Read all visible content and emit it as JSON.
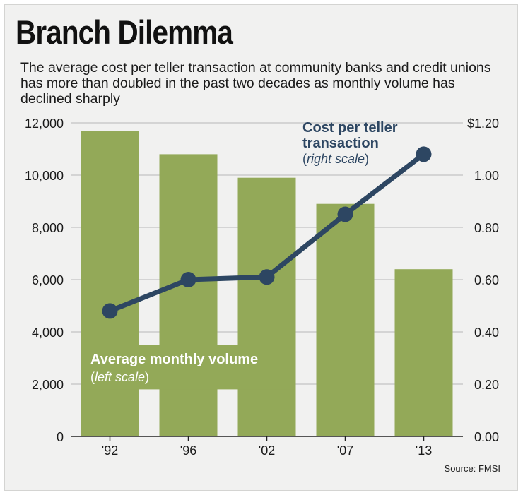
{
  "title": "Branch Dilemma",
  "subtitle": "The average cost per teller transaction at community banks and credit unions has more than doubled in the past two decades as monthly volume has declined sharply",
  "source": "Source: FMSI",
  "colors": {
    "bar": "#93a958",
    "line": "#2d4662",
    "grid": "#b8b8b8",
    "background": "#f1f1f0"
  },
  "chart_data": {
    "type": "bar",
    "categories": [
      "'92",
      "'96",
      "'02",
      "'07",
      "'13"
    ],
    "series": [
      {
        "name": "Average monthly volume",
        "type": "bar",
        "axis": "left",
        "values": [
          11700,
          10800,
          9900,
          8900,
          6400
        ]
      },
      {
        "name": "Cost per teller transaction",
        "type": "line",
        "axis": "right",
        "values": [
          0.48,
          0.6,
          0.61,
          0.85,
          1.08
        ]
      }
    ],
    "left_axis": {
      "ylim": [
        0,
        12000
      ],
      "ticks": [
        "0",
        "2,000",
        "4,000",
        "6,000",
        "8,000",
        "10,000",
        "12,000"
      ]
    },
    "right_axis": {
      "ylim": [
        0,
        1.2
      ],
      "ticks": [
        "0.00",
        "0.20",
        "0.40",
        "0.60",
        "0.80",
        "1.00",
        "$1.20"
      ]
    },
    "annotations": {
      "line_label": [
        "Cost per teller",
        "transaction"
      ],
      "line_scale": "right scale",
      "bar_label": "Average monthly volume",
      "bar_scale": "left scale"
    },
    "grid": true
  }
}
